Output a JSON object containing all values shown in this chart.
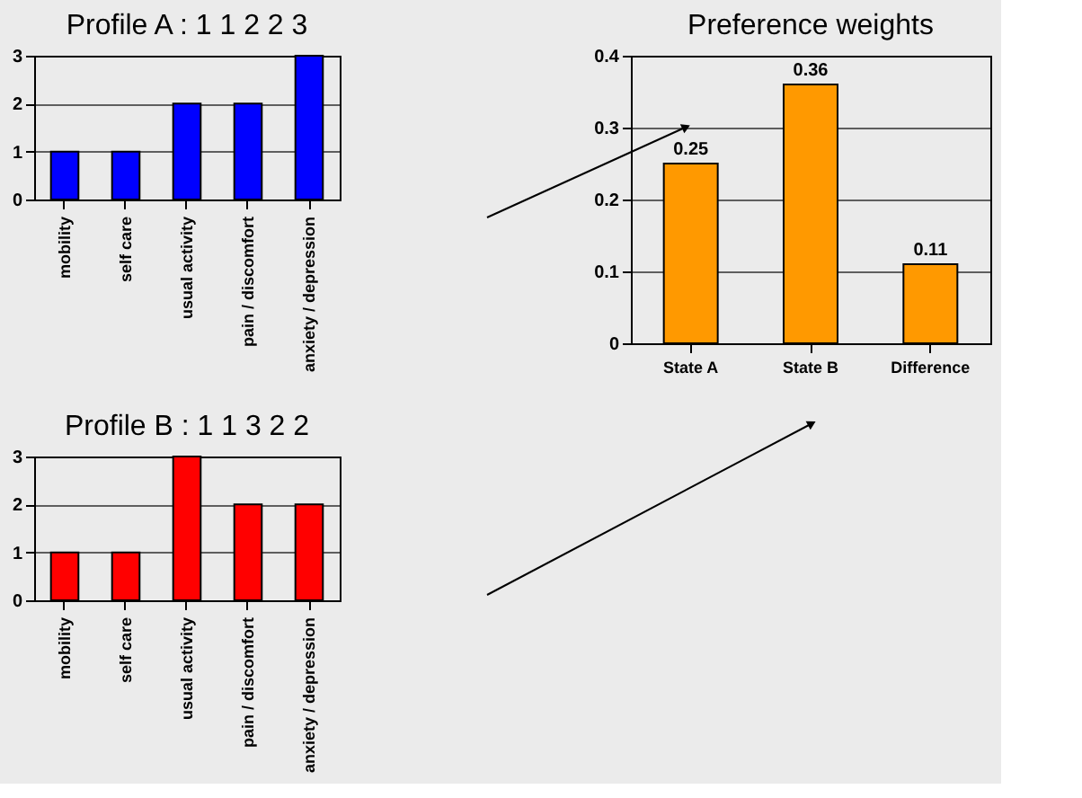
{
  "chart_data": [
    {
      "type": "bar",
      "title": "Profile A : 1 1 2 2 3",
      "categories": [
        "mobility",
        "self care",
        "usual activity",
        "pain / discomfort",
        "anxiety / depression"
      ],
      "values": [
        1,
        1,
        2,
        2,
        3
      ],
      "color": "#0000ff",
      "ylim": [
        0,
        3
      ],
      "yticks": [
        0,
        1,
        2,
        3
      ],
      "grid": "y"
    },
    {
      "type": "bar",
      "title": "Profile B : 1 1 3 2 2",
      "categories": [
        "mobility",
        "self care",
        "usual activity",
        "pain / discomfort",
        "anxiety / depression"
      ],
      "values": [
        1,
        1,
        3,
        2,
        2
      ],
      "color": "#ff0000",
      "ylim": [
        0,
        3
      ],
      "yticks": [
        0,
        1,
        2,
        3
      ],
      "grid": "y"
    },
    {
      "type": "bar",
      "title": "Preference weights",
      "categories": [
        "State A",
        "State B",
        "Difference"
      ],
      "values": [
        0.25,
        0.36,
        0.11
      ],
      "color": "#ff9900",
      "ylim": [
        0,
        0.4
      ],
      "yticks": [
        0,
        0.1,
        0.2,
        0.3,
        0.4
      ],
      "grid": "y",
      "data_labels": true
    }
  ]
}
